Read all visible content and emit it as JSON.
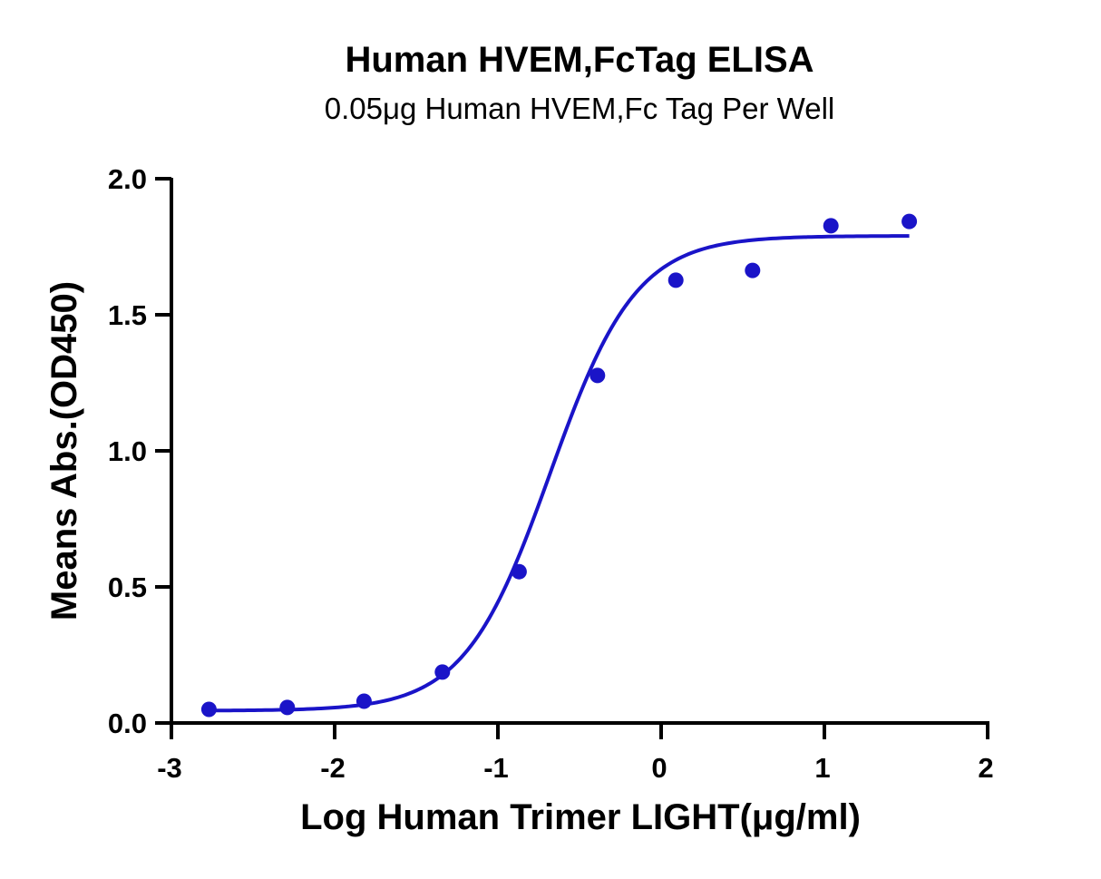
{
  "chart_data": {
    "type": "scatter",
    "title": "Human HVEM,FcTag ELISA",
    "subtitle": "0.05μg Human HVEM,Fc Tag Per Well",
    "xlabel": "Log Human Trimer LIGHT(μg/ml)",
    "ylabel": "Means Abs.(OD450)",
    "xlim": [
      -3,
      2
    ],
    "ylim": [
      0,
      2.0
    ],
    "x_ticks": [
      "-3",
      "-2",
      "-1",
      "0",
      "1",
      "2"
    ],
    "y_ticks": [
      "0.0",
      "0.5",
      "1.0",
      "1.5",
      "2.0"
    ],
    "grid": false,
    "color": "#1a14c8",
    "series": [
      {
        "points": [
          {
            "x": -2.77,
            "y": 0.05
          },
          {
            "x": -2.29,
            "y": 0.057
          },
          {
            "x": -1.82,
            "y": 0.08
          },
          {
            "x": -1.34,
            "y": 0.187
          },
          {
            "x": -0.87,
            "y": 0.556
          },
          {
            "x": -0.39,
            "y": 1.277
          },
          {
            "x": 0.09,
            "y": 1.627
          },
          {
            "x": 0.56,
            "y": 1.663
          },
          {
            "x": 1.04,
            "y": 1.827
          },
          {
            "x": 1.52,
            "y": 1.843
          }
        ]
      }
    ],
    "fit": {
      "type": "4PL",
      "bottom": 0.045,
      "top": 1.79,
      "log_ec50": -0.68,
      "hill": 1.65,
      "x_range": [
        -2.77,
        1.52
      ]
    }
  }
}
